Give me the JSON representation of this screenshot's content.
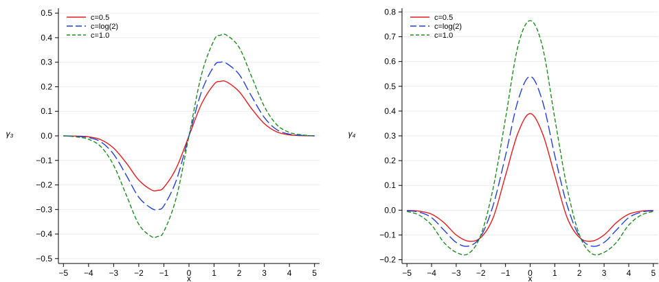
{
  "chart_data": [
    {
      "type": "line",
      "ylabel": "γ₃",
      "xlabel": "x",
      "xlim": [
        -5.2,
        5.2
      ],
      "ylim": [
        -0.52,
        0.52
      ],
      "xticks": [
        -5,
        -4,
        -3,
        -2,
        -1,
        0,
        1,
        2,
        3,
        4,
        5
      ],
      "xtick_labels": [
        "−5",
        "−4",
        "−3",
        "−2",
        "−1",
        "0",
        "1",
        "2",
        "3",
        "4",
        "5"
      ],
      "yticks": [
        -0.5,
        -0.4,
        -0.3,
        -0.2,
        -0.1,
        0.0,
        0.1,
        0.2,
        0.3,
        0.4,
        0.5
      ],
      "ytick_labels": [
        "−0.5",
        "−0.4",
        "−0.3",
        "−0.2",
        "−0.1",
        "0.0",
        "0.1",
        "0.2",
        "0.3",
        "0.4",
        "0.5"
      ],
      "grid": true,
      "legend_position": "top-left",
      "x": [
        -5,
        -4.5,
        -4,
        -3.5,
        -3,
        -2.5,
        -2,
        -1.5,
        -1.25,
        -1,
        -0.5,
        0,
        0.5,
        1,
        1.25,
        1.5,
        2,
        2.5,
        3,
        3.5,
        4,
        4.5,
        5
      ],
      "series": [
        {
          "name": "c=0.5",
          "color": "#e41a1c",
          "dash": "solid",
          "values": [
            0.0,
            -0.001,
            -0.004,
            -0.016,
            -0.05,
            -0.11,
            -0.18,
            -0.22,
            -0.222,
            -0.21,
            -0.13,
            0.0,
            0.13,
            0.21,
            0.222,
            0.22,
            0.18,
            0.11,
            0.05,
            0.016,
            0.004,
            0.001,
            0.0
          ]
        },
        {
          "name": "c=log(2)",
          "color": "#1f3fd8",
          "dash": "long",
          "values": [
            0.0,
            -0.002,
            -0.007,
            -0.025,
            -0.075,
            -0.16,
            -0.25,
            -0.295,
            -0.3,
            -0.285,
            -0.18,
            0.0,
            0.18,
            0.285,
            0.3,
            0.295,
            0.25,
            0.16,
            0.075,
            0.025,
            0.007,
            0.002,
            0.0
          ]
        },
        {
          "name": "c=1.0",
          "color": "#1e8a1e",
          "dash": "short",
          "values": [
            0.0,
            -0.004,
            -0.014,
            -0.045,
            -0.12,
            -0.24,
            -0.36,
            -0.41,
            -0.41,
            -0.39,
            -0.25,
            0.0,
            0.25,
            0.39,
            0.41,
            0.41,
            0.36,
            0.24,
            0.12,
            0.045,
            0.014,
            0.004,
            0.0
          ]
        }
      ]
    },
    {
      "type": "line",
      "ylabel": "γ₄",
      "xlabel": "x",
      "xlim": [
        -5.2,
        5.2
      ],
      "ylim": [
        -0.215,
        0.815
      ],
      "xticks": [
        -5,
        -4,
        -3,
        -2,
        -1,
        0,
        1,
        2,
        3,
        4,
        5
      ],
      "xtick_labels": [
        "−5",
        "−4",
        "−3",
        "−2",
        "−1",
        "0",
        "1",
        "2",
        "3",
        "4",
        "5"
      ],
      "yticks": [
        -0.2,
        -0.1,
        0.0,
        0.1,
        0.2,
        0.3,
        0.4,
        0.5,
        0.6,
        0.7,
        0.8
      ],
      "ytick_labels": [
        "−0.2",
        "−0.1",
        "0.0",
        "0.1",
        "0.2",
        "0.3",
        "0.4",
        "0.5",
        "0.6",
        "0.7",
        "0.8"
      ],
      "grid": true,
      "legend_position": "top-left",
      "x": [
        -5,
        -4.5,
        -4,
        -3.5,
        -3,
        -2.5,
        -2,
        -1.5,
        -1,
        -0.5,
        0,
        0.5,
        1,
        1.5,
        2,
        2.5,
        3,
        3.5,
        4,
        4.5,
        5
      ],
      "series": [
        {
          "name": "c=0.5",
          "color": "#e41a1c",
          "dash": "solid",
          "values": [
            -0.001,
            -0.004,
            -0.016,
            -0.05,
            -0.1,
            -0.125,
            -0.11,
            -0.03,
            0.14,
            0.31,
            0.39,
            0.31,
            0.14,
            -0.03,
            -0.11,
            -0.125,
            -0.1,
            -0.05,
            -0.016,
            -0.004,
            -0.001
          ]
        },
        {
          "name": "c=log(2)",
          "color": "#1f3fd8",
          "dash": "long",
          "values": [
            -0.002,
            -0.008,
            -0.03,
            -0.08,
            -0.13,
            -0.145,
            -0.105,
            0.02,
            0.22,
            0.44,
            0.54,
            0.44,
            0.22,
            0.02,
            -0.105,
            -0.145,
            -0.13,
            -0.08,
            -0.03,
            -0.008,
            -0.002
          ]
        },
        {
          "name": "c=1.0",
          "color": "#1e8a1e",
          "dash": "short",
          "values": [
            -0.005,
            -0.02,
            -0.06,
            -0.13,
            -0.17,
            -0.175,
            -0.1,
            0.09,
            0.37,
            0.66,
            0.765,
            0.66,
            0.37,
            0.09,
            -0.1,
            -0.175,
            -0.17,
            -0.13,
            -0.06,
            -0.02,
            -0.005
          ]
        }
      ]
    }
  ]
}
